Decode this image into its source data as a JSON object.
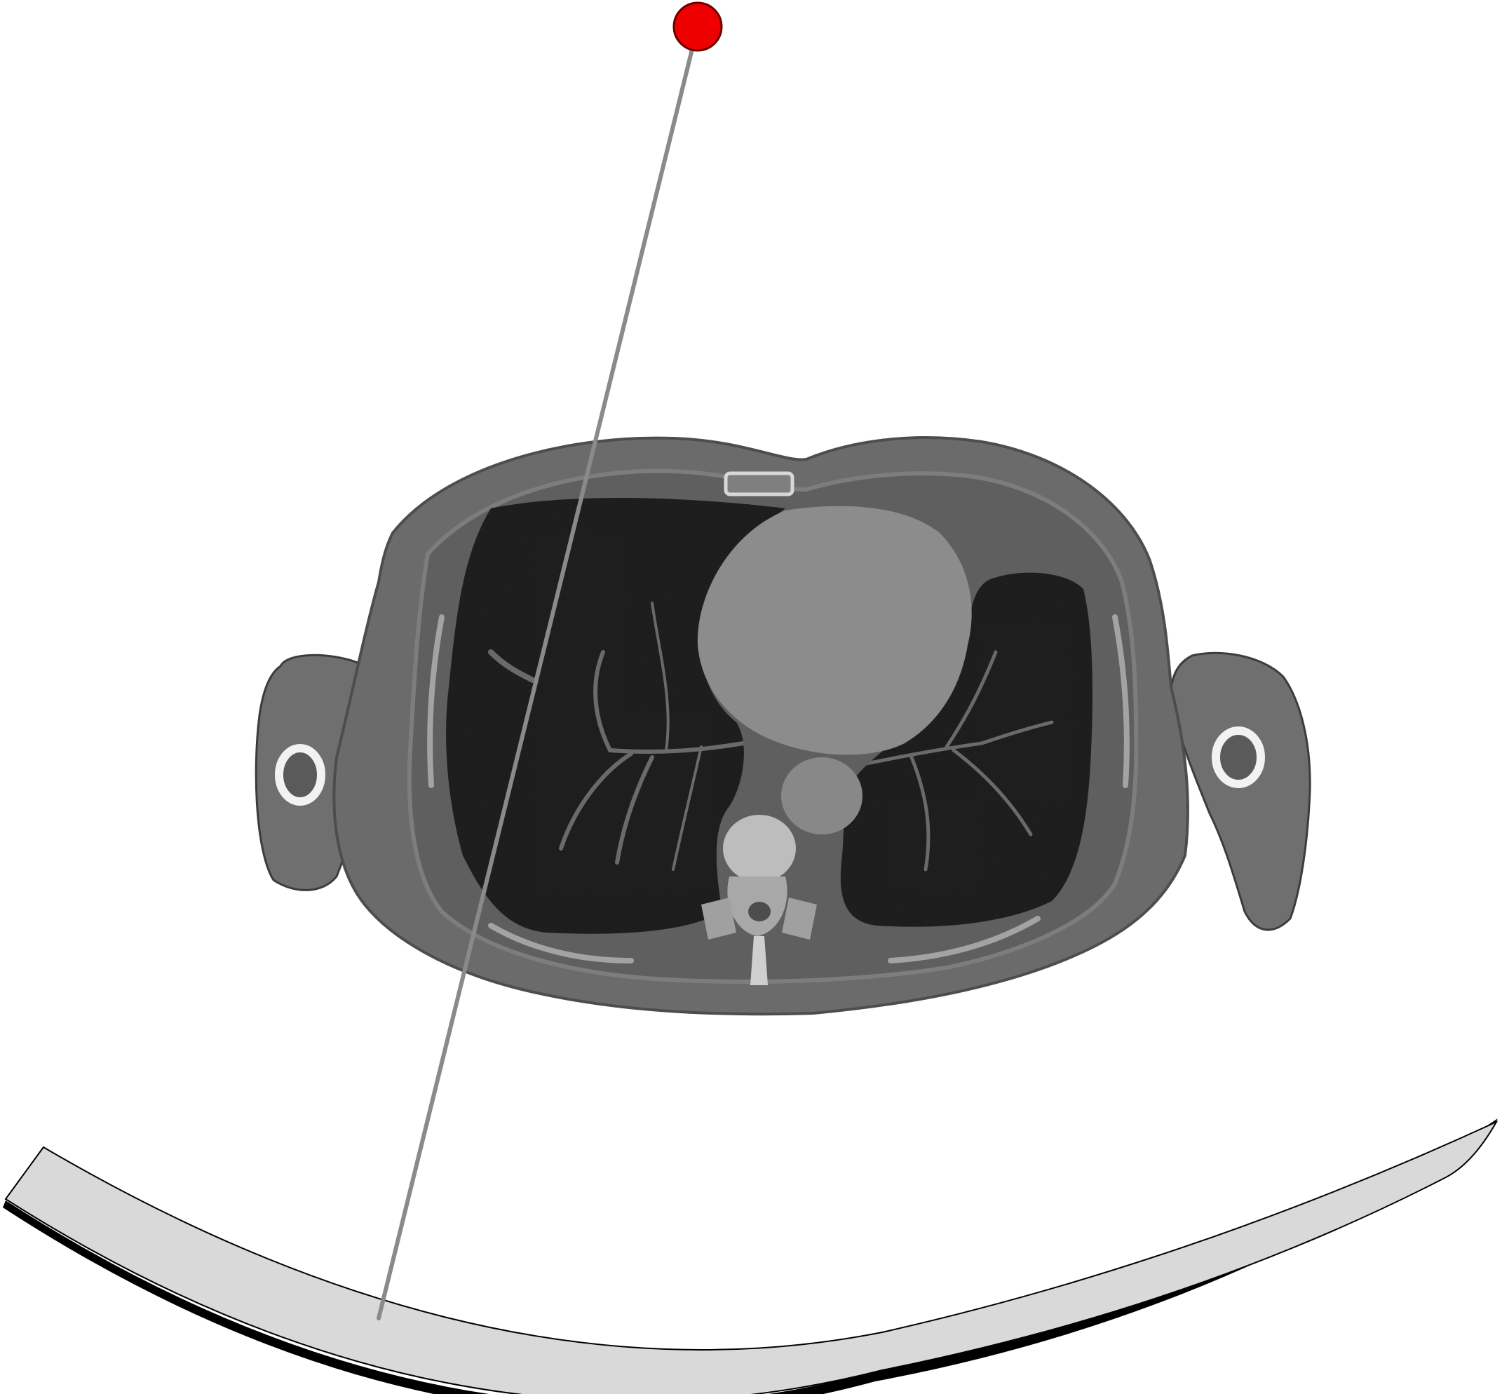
{
  "scene": {
    "background": "#ffffff",
    "colors": {
      "source": "#ee0000",
      "source_outline": "#6a0000",
      "ray": "#8a8a8a",
      "detector_fill": "#d9d9d9",
      "detector_edge": "#000000",
      "body": "#696969",
      "fat": "#5f5f5f",
      "lung": "#161616",
      "vessel": "#7a7a7a",
      "heart": "#8c8c8c",
      "bone": "#bdbdbd",
      "cortical_bone": "#efefef"
    },
    "elements": [
      {
        "name": "x-ray-source",
        "kind": "point-source"
      },
      {
        "name": "projection-ray",
        "kind": "line"
      },
      {
        "name": "ct-slice",
        "kind": "axial-chest-ct"
      },
      {
        "name": "curved-detector",
        "kind": "arc-detector"
      }
    ]
  }
}
